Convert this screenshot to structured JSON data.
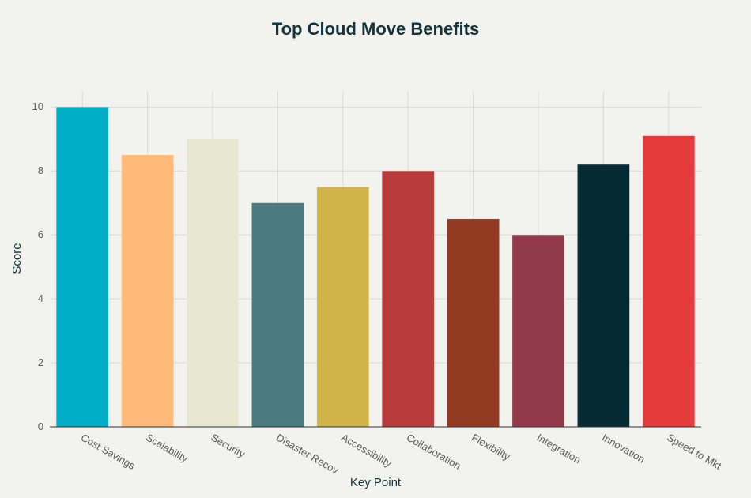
{
  "chart_data": {
    "type": "bar",
    "title": "Top Cloud Move Benefits",
    "xlabel": "Key Point",
    "ylabel": "Score",
    "categories": [
      "Cost Savings",
      "Scalability",
      "Security",
      "Disaster Recov",
      "Accessibility",
      "Collaboration",
      "Flexibility",
      "Integration",
      "Innovation",
      "Speed to Mkt"
    ],
    "values": [
      10,
      8.5,
      9,
      7,
      7.5,
      8,
      6.5,
      6,
      8.2,
      9.1
    ],
    "colors": [
      "#00aec7",
      "#ffba7a",
      "#e8e8d0",
      "#4a7b82",
      "#d1b449",
      "#b83a3a",
      "#933b22",
      "#923a4a",
      "#062a33",
      "#e63b3b"
    ],
    "ylim": [
      0,
      10.5
    ],
    "yticks": [
      0,
      2,
      4,
      6,
      8,
      10
    ],
    "grid": true,
    "legend": "none"
  }
}
